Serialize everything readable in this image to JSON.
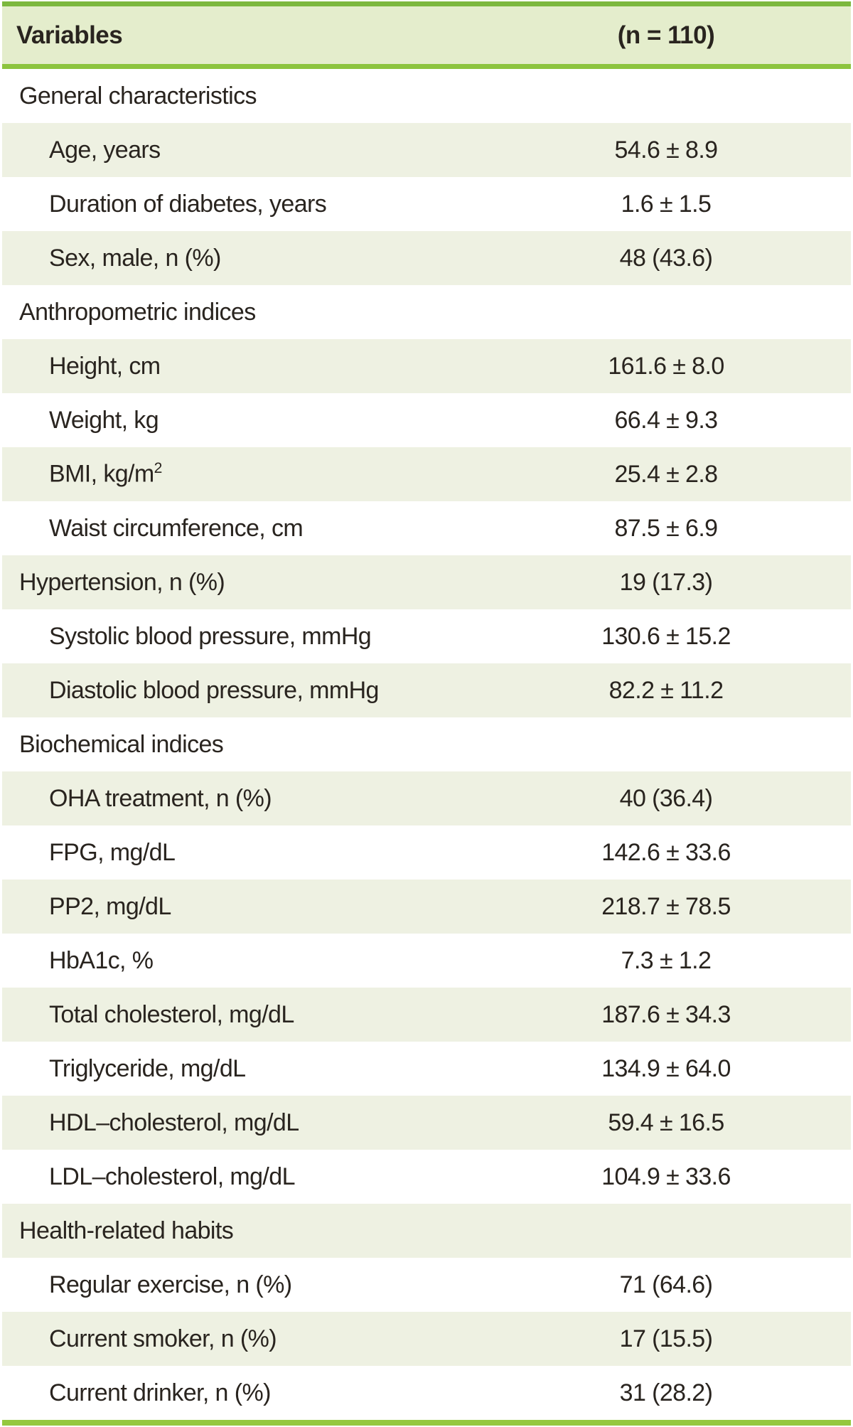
{
  "table": {
    "columns": [
      "Variables",
      "(n = 110)"
    ],
    "rows": [
      {
        "label": "General characteristics",
        "sup": "",
        "value": "",
        "indent": false,
        "section": true
      },
      {
        "label": "Age, years",
        "sup": "",
        "value": "54.6 ± 8.9",
        "indent": true,
        "section": false
      },
      {
        "label": "Duration of diabetes, years",
        "sup": "",
        "value": "1.6 ± 1.5",
        "indent": true,
        "section": false
      },
      {
        "label": "Sex, male, n (%)",
        "sup": "",
        "value": "48 (43.6)",
        "indent": true,
        "section": false
      },
      {
        "label": "Anthropometric indices",
        "sup": "",
        "value": "",
        "indent": false,
        "section": true
      },
      {
        "label": "Height, cm",
        "sup": "",
        "value": "161.6 ± 8.0",
        "indent": true,
        "section": false
      },
      {
        "label": "Weight, kg",
        "sup": "",
        "value": "66.4 ± 9.3",
        "indent": true,
        "section": false
      },
      {
        "label": "BMI, kg/m",
        "sup": "2",
        "value": "25.4 ± 2.8",
        "indent": true,
        "section": false
      },
      {
        "label": "Waist circumference, cm",
        "sup": "",
        "value": "87.5 ± 6.9",
        "indent": true,
        "section": false
      },
      {
        "label": "Hypertension, n (%)",
        "sup": "",
        "value": "19 (17.3)",
        "indent": false,
        "section": false
      },
      {
        "label": "Systolic blood pressure, mmHg",
        "sup": "",
        "value": "130.6 ± 15.2",
        "indent": true,
        "section": false
      },
      {
        "label": "Diastolic blood pressure, mmHg",
        "sup": "",
        "value": "82.2 ± 11.2",
        "indent": true,
        "section": false
      },
      {
        "label": "Biochemical indices",
        "sup": "",
        "value": "",
        "indent": false,
        "section": true
      },
      {
        "label": "OHA treatment, n (%)",
        "sup": "",
        "value": "40 (36.4)",
        "indent": true,
        "section": false
      },
      {
        "label": "FPG, mg/dL",
        "sup": "",
        "value": "142.6 ± 33.6",
        "indent": true,
        "section": false
      },
      {
        "label": "PP2, mg/dL",
        "sup": "",
        "value": "218.7 ± 78.5",
        "indent": true,
        "section": false
      },
      {
        "label": "HbA1c, %",
        "sup": "",
        "value": "7.3 ± 1.2",
        "indent": true,
        "section": false
      },
      {
        "label": "Total cholesterol, mg/dL",
        "sup": "",
        "value": "187.6 ± 34.3",
        "indent": true,
        "section": false
      },
      {
        "label": "Triglyceride, mg/dL",
        "sup": "",
        "value": "134.9 ± 64.0",
        "indent": true,
        "section": false
      },
      {
        "label": "HDL–cholesterol, mg/dL",
        "sup": "",
        "value": "59.4 ± 16.5",
        "indent": true,
        "section": false
      },
      {
        "label": "LDL–cholesterol, mg/dL",
        "sup": "",
        "value": "104.9 ± 33.6",
        "indent": true,
        "section": false
      },
      {
        "label": "Health-related habits",
        "sup": "",
        "value": "",
        "indent": false,
        "section": true
      },
      {
        "label": "Regular exercise, n (%)",
        "sup": "",
        "value": "71 (64.6)",
        "indent": true,
        "section": false
      },
      {
        "label": "Current smoker, n (%)",
        "sup": "",
        "value": "17 (15.5)",
        "indent": true,
        "section": false
      },
      {
        "label": "Current drinker, n (%)",
        "sup": "",
        "value": "31 (28.2)",
        "indent": true,
        "section": false
      }
    ]
  },
  "colors": {
    "header_bg": "#e4edcc",
    "stripe_bg": "#eef1e2",
    "top_border": "#7cb83e",
    "header_divider": "#8cc43e",
    "bottom_border": "#94c83e",
    "text": "#29241f"
  },
  "chart_data": {
    "type": "table",
    "title": "",
    "columns": [
      "Variables",
      "(n = 110)"
    ],
    "rows": [
      [
        "General characteristics",
        ""
      ],
      [
        "Age, years",
        "54.6 ± 8.9"
      ],
      [
        "Duration of diabetes, years",
        "1.6 ± 1.5"
      ],
      [
        "Sex, male, n (%)",
        "48 (43.6)"
      ],
      [
        "Anthropometric indices",
        ""
      ],
      [
        "Height, cm",
        "161.6 ± 8.0"
      ],
      [
        "Weight, kg",
        "66.4 ± 9.3"
      ],
      [
        "BMI, kg/m2",
        "25.4 ± 2.8"
      ],
      [
        "Waist circumference, cm",
        "87.5 ± 6.9"
      ],
      [
        "Hypertension, n (%)",
        "19 (17.3)"
      ],
      [
        "Systolic blood pressure, mmHg",
        "130.6 ± 15.2"
      ],
      [
        "Diastolic blood pressure, mmHg",
        "82.2 ± 11.2"
      ],
      [
        "Biochemical indices",
        ""
      ],
      [
        "OHA treatment, n (%)",
        "40 (36.4)"
      ],
      [
        "FPG, mg/dL",
        "142.6 ± 33.6"
      ],
      [
        "PP2, mg/dL",
        "218.7 ± 78.5"
      ],
      [
        "HbA1c, %",
        "7.3 ± 1.2"
      ],
      [
        "Total cholesterol, mg/dL",
        "187.6 ± 34.3"
      ],
      [
        "Triglyceride, mg/dL",
        "134.9 ± 64.0"
      ],
      [
        "HDL–cholesterol, mg/dL",
        "59.4 ± 16.5"
      ],
      [
        "LDL–cholesterol, mg/dL",
        "104.9 ± 33.6"
      ],
      [
        "Health-related habits",
        ""
      ],
      [
        "Regular exercise, n (%)",
        "71 (64.6)"
      ],
      [
        "Current smoker, n (%)",
        "17 (15.5)"
      ],
      [
        "Current drinker, n (%)",
        "31 (28.2)"
      ]
    ]
  }
}
